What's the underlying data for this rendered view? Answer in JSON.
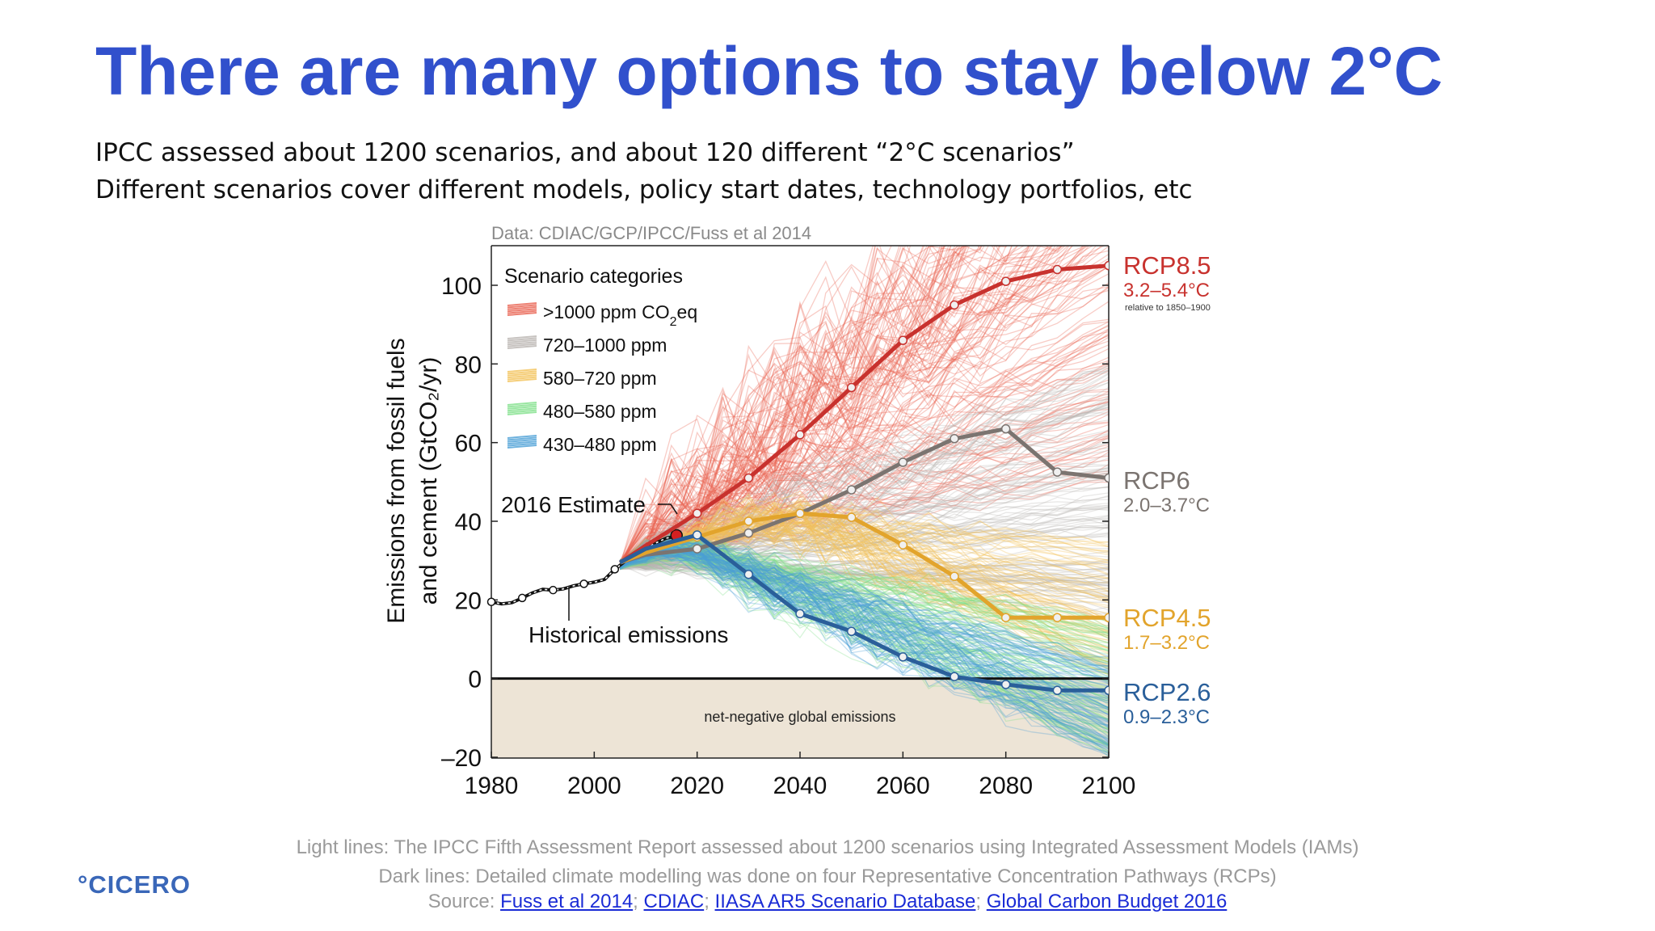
{
  "slide": {
    "title": "There are many options to stay below 2°C",
    "subtitle_lines": [
      "IPCC assessed about 1200 scenarios, and about 120 different “2°C scenarios”",
      "Different scenarios cover different models, policy start dates, technology portfolios, etc"
    ],
    "captions": {
      "line1": "Light lines: The IPCC Fifth Assessment Report assessed about 1200 scenarios using Integrated Assessment Models (IAMs)",
      "line2": "Dark lines: Detailed climate modelling was done on four Representative Concentration Pathways (RCPs)",
      "source_label": "Source: ",
      "sources": [
        "Fuss et al 2014",
        "CDIAC",
        "IIASA AR5 Scenario Database",
        "Global Carbon Budget 2016"
      ],
      "separator": "; "
    },
    "logo": "°CICERO"
  },
  "chart_data": {
    "type": "line",
    "data_credit": "Data: CDIAC/GCP/IPCC/Fuss et al 2014",
    "ylabel": "Emissions from fossil fuels and cement (GtCO₂/yr)",
    "xlim": [
      1980,
      2100
    ],
    "ylim": [
      -20,
      110
    ],
    "xticks": [
      1980,
      2000,
      2020,
      2040,
      2060,
      2080,
      2100
    ],
    "yticks": [
      -20,
      0,
      20,
      40,
      60,
      80,
      100
    ],
    "grid": false,
    "legend": {
      "title": "Scenario categories",
      "placement": "top-left",
      "items": [
        {
          "label": ">1000 ppm CO2eq",
          "color": "#e8604f"
        },
        {
          "label": "720–1000 ppm",
          "color": "#b9b4b0"
        },
        {
          "label": "580–720 ppm",
          "color": "#f3c258"
        },
        {
          "label": "480–580 ppm",
          "color": "#7fe08a"
        },
        {
          "label": "430–480 ppm",
          "color": "#4a9fd6"
        }
      ]
    },
    "annotations": {
      "estimate": "2016 Estimate",
      "historical": "Historical emissions",
      "negative_region": "net-negative global emissions",
      "relative_note": "relative to 1850–1900"
    },
    "historical": {
      "name": "Historical emissions",
      "x": [
        1980,
        1982,
        1984,
        1986,
        1988,
        1990,
        1992,
        1994,
        1996,
        1998,
        2000,
        2002,
        2004,
        2006,
        2008,
        2010,
        2012,
        2014,
        2016
      ],
      "y": [
        19.5,
        19.0,
        19.3,
        20.5,
        21.8,
        22.7,
        22.5,
        22.8,
        23.6,
        24.1,
        24.5,
        25.2,
        27.8,
        29.8,
        31.5,
        33.1,
        34.5,
        35.7,
        36.2
      ]
    },
    "estimate_2016": {
      "x": 2016,
      "y": 36.4
    },
    "rcps": [
      {
        "name": "RCP8.5",
        "range": "3.2–5.4°C",
        "color": "#c8322e",
        "x": [
          2005,
          2010,
          2020,
          2030,
          2040,
          2050,
          2060,
          2070,
          2080,
          2090,
          2100
        ],
        "y": [
          29.5,
          33.8,
          42,
          51,
          62,
          74,
          86,
          95,
          101,
          104,
          105
        ]
      },
      {
        "name": "RCP6",
        "range": "2.0–3.7°C",
        "color": "#7b7470",
        "x": [
          2005,
          2010,
          2020,
          2030,
          2040,
          2050,
          2060,
          2070,
          2080,
          2090,
          2100
        ],
        "y": [
          29.5,
          31.5,
          33,
          37,
          42,
          48,
          55,
          61,
          63.5,
          52.5,
          51
        ]
      },
      {
        "name": "RCP4.5",
        "range": "1.7–3.2°C",
        "color": "#e2a42c",
        "x": [
          2005,
          2010,
          2020,
          2030,
          2040,
          2050,
          2060,
          2070,
          2080,
          2090,
          2100
        ],
        "y": [
          29.5,
          32,
          36,
          40,
          42,
          41,
          34,
          26,
          15.5,
          15.5,
          15.5
        ]
      },
      {
        "name": "RCP2.6",
        "range": "0.9–2.3°C",
        "color": "#2a5f9a",
        "x": [
          2005,
          2010,
          2020,
          2030,
          2040,
          2050,
          2060,
          2070,
          2080,
          2090,
          2100
        ],
        "y": [
          29.5,
          33,
          36.5,
          26.5,
          16.5,
          12,
          5.5,
          0.5,
          -1.5,
          -3,
          -3
        ]
      }
    ],
    "scenario_bands": [
      {
        "category": ">1000 ppm CO2eq",
        "color": "#e8604f",
        "count": 150,
        "end_range": [
          50,
          160
        ],
        "shape": "rising"
      },
      {
        "category": "720–1000 ppm",
        "color": "#b9b4b0",
        "count": 130,
        "end_range": [
          15,
          80
        ],
        "shape": "rising"
      },
      {
        "category": "580–720 ppm",
        "color": "#f3c258",
        "count": 90,
        "end_range": [
          0,
          35
        ],
        "shape": "peaked"
      },
      {
        "category": "480–580 ppm",
        "color": "#7fe08a",
        "count": 110,
        "end_range": [
          -20,
          15
        ],
        "shape": "falling"
      },
      {
        "category": "430–480 ppm",
        "color": "#4a9fd6",
        "count": 90,
        "end_range": [
          -20,
          5
        ],
        "shape": "falling"
      }
    ]
  }
}
